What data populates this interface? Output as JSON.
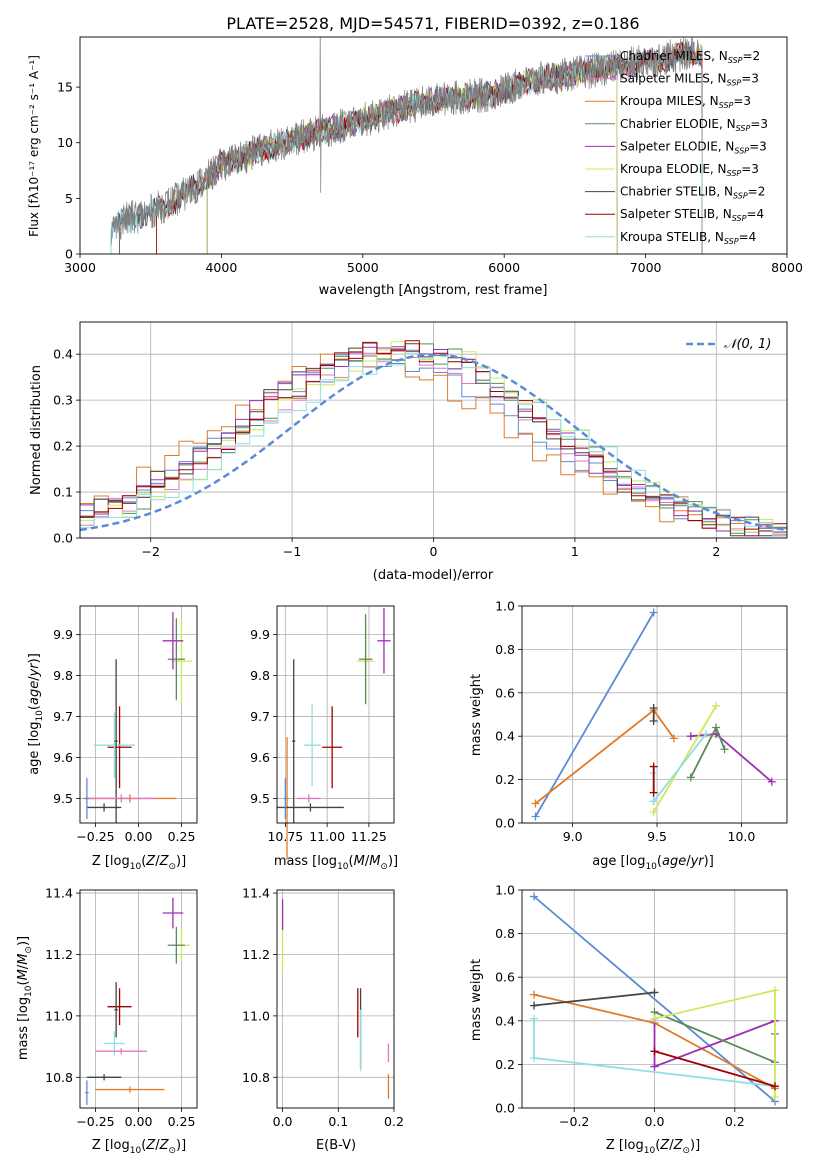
{
  "figure_title": "PLATE=2528, MJD=54571, FIBERID=0392, z=0.186",
  "chart_data": [
    {
      "id": "spectrum",
      "type": "line",
      "title": "PLATE=2528, MJD=54571, FIBERID=0392, z=0.186",
      "xlabel": "wavelength [Angstrom, rest frame]",
      "ylabel": "Flux [fλ10⁻¹⁷ erg cm⁻² s⁻¹ A⁻¹]",
      "xlim": [
        3000,
        8000
      ],
      "ylim": [
        0,
        19.5
      ],
      "xticks": [
        3000,
        4000,
        5000,
        6000,
        7000,
        8000
      ],
      "yticks": [
        0,
        5,
        10,
        15
      ],
      "legend_position": "top-right",
      "legend": [
        {
          "label": "Chabrier MILES, N_SSP=2",
          "color": "#5b8bd6"
        },
        {
          "label": "Salpeter MILES, N_SSP=3",
          "color": "#e377c2"
        },
        {
          "label": "Kroupa MILES, N_SSP=3",
          "color": "#e07b2a"
        },
        {
          "label": "Chabrier ELODIE, N_SSP=3",
          "color": "#5a8a5a"
        },
        {
          "label": "Salpeter ELODIE, N_SSP=3",
          "color": "#9b30b0"
        },
        {
          "label": "Kroupa ELODIE, N_SSP=3",
          "color": "#cfe85a"
        },
        {
          "label": "Chabrier STELIB, N_SSP=2",
          "color": "#444444"
        },
        {
          "label": "Salpeter STELIB, N_SSP=4",
          "color": "#a00000"
        },
        {
          "label": "Kroupa STELIB, N_SSP=4",
          "color": "#8fdfe0"
        }
      ],
      "continuum": [
        [
          3220,
          2.0
        ],
        [
          3300,
          3.0
        ],
        [
          3500,
          3.8
        ],
        [
          3700,
          5.0
        ],
        [
          3900,
          6.8
        ],
        [
          4000,
          8.0
        ],
        [
          4300,
          9.5
        ],
        [
          4600,
          10.6
        ],
        [
          5000,
          12.0
        ],
        [
          5300,
          13.2
        ],
        [
          5600,
          14.0
        ],
        [
          5900,
          14.3
        ],
        [
          6200,
          15.6
        ],
        [
          6600,
          16.4
        ],
        [
          7000,
          17.3
        ],
        [
          7400,
          18.2
        ]
      ],
      "model_start": {
        "Chabrier MILES": 3220,
        "Kroupa STELIB": 3220,
        "Chabrier STELIB": 3280,
        "Salpeter STELIB": 3540,
        "Kroupa MILES": 3540,
        "Kroupa ELODIE": 3900,
        "Chabrier ELODIE": 3900,
        "Salpeter ELODIE": 3900,
        "Salpeter MILES": 3900
      },
      "model_end": {
        "Chabrier ELODIE": 6800,
        "Salpeter ELODIE": 6800,
        "Kroupa ELODIE": 6800,
        "Salpeter STELIB": 7400,
        "Chabrier STELIB": 7400
      }
    },
    {
      "id": "residuals",
      "type": "histogram",
      "xlabel": "(data-model)/error",
      "ylabel": "Normed distribution",
      "xlim": [
        -2.5,
        2.5
      ],
      "ylim": [
        0,
        0.47
      ],
      "xticks": [
        -2,
        -1,
        0,
        1,
        2
      ],
      "yticks": [
        0.0,
        0.1,
        0.2,
        0.3,
        0.4
      ],
      "legend_position": "top-right",
      "gaussian_label": "N(0,1)",
      "gaussian_color": "#5b8bd6",
      "series": [
        {
          "color": "#5b8bd6",
          "center": -0.35,
          "peak": 0.39
        },
        {
          "color": "#e377c2",
          "center": -0.25,
          "peak": 0.4
        },
        {
          "color": "#e07b2a",
          "center": -0.5,
          "peak": 0.39
        },
        {
          "color": "#5a8a5a",
          "center": -0.2,
          "peak": 0.41
        },
        {
          "color": "#9b30b0",
          "center": -0.3,
          "peak": 0.42
        },
        {
          "color": "#cfe85a",
          "center": -0.15,
          "peak": 0.41
        },
        {
          "color": "#444444",
          "center": -0.3,
          "peak": 0.42
        },
        {
          "color": "#a00000",
          "center": -0.25,
          "peak": 0.41
        },
        {
          "color": "#8fdfe0",
          "center": -0.1,
          "peak": 0.4
        }
      ]
    },
    {
      "id": "age-vs-Z",
      "type": "errorbar",
      "xlabel": "Z [log10(Z/Z⊙)]",
      "ylabel": "age [log10(age/yr)]",
      "xlim": [
        -0.34,
        0.34
      ],
      "ylim": [
        9.44,
        9.97
      ],
      "xticks": [
        -0.25,
        0.0,
        0.25
      ],
      "xticklabels": [
        "−0.25",
        "0.00",
        "0.25"
      ],
      "yticks": [
        9.5,
        9.6,
        9.7,
        9.8,
        9.9
      ],
      "points": [
        {
          "x": 0.25,
          "y": 9.835,
          "xerr": 0.06,
          "yerr": 0.1,
          "color": "#cfe85a"
        },
        {
          "x": 0.22,
          "y": 9.84,
          "xerr": 0.05,
          "yerr": 0.1,
          "color": "#5a8a5a"
        },
        {
          "x": 0.2,
          "y": 9.885,
          "xerr": 0.06,
          "yerr": 0.07,
          "color": "#9b30b0"
        },
        {
          "x": -0.11,
          "y": 9.625,
          "xerr": 0.07,
          "yerr": 0.1,
          "color": "#a00000"
        },
        {
          "x": -0.14,
          "y": 9.63,
          "xerr": 0.12,
          "yerr": 0.08,
          "color": "#8fdfe0"
        },
        {
          "x": -0.13,
          "y": 9.64,
          "xerr": 0.01,
          "yerr": 0.2,
          "color": "#444444"
        },
        {
          "x": -0.05,
          "y": 9.5,
          "xerr": 0.27,
          "yerr": 0.01,
          "color": "#e07b2a"
        },
        {
          "x": -0.1,
          "y": 9.5,
          "xerr": 0.2,
          "yerr": 0.01,
          "color": "#e377c2"
        },
        {
          "x": -0.2,
          "y": 9.478,
          "xerr": 0.1,
          "yerr": 0.01,
          "color": "#444444"
        },
        {
          "x": -0.3,
          "y": 9.5,
          "xerr": 0.01,
          "yerr": 0.05,
          "color": "#5b8bd6"
        }
      ]
    },
    {
      "id": "age-vs-mass",
      "type": "errorbar",
      "xlabel": "mass [log10(M/M⊙)]",
      "xlim": [
        10.7,
        11.4
      ],
      "ylim": [
        9.44,
        9.97
      ],
      "xticks": [
        10.75,
        11.0,
        11.25
      ],
      "yticks": [
        9.5,
        9.6,
        9.7,
        9.8,
        9.9
      ],
      "points": [
        {
          "x": 11.23,
          "y": 9.835,
          "xerr": 0.05,
          "yerr": 0.1,
          "color": "#cfe85a"
        },
        {
          "x": 11.23,
          "y": 9.84,
          "xerr": 0.04,
          "yerr": 0.11,
          "color": "#5a8a5a"
        },
        {
          "x": 11.34,
          "y": 9.885,
          "xerr": 0.04,
          "yerr": 0.08,
          "color": "#9b30b0"
        },
        {
          "x": 11.03,
          "y": 9.625,
          "xerr": 0.06,
          "yerr": 0.1,
          "color": "#a00000"
        },
        {
          "x": 10.91,
          "y": 9.63,
          "xerr": 0.05,
          "yerr": 0.1,
          "color": "#8fdfe0"
        },
        {
          "x": 10.8,
          "y": 9.64,
          "xerr": 0.01,
          "yerr": 0.2,
          "color": "#444444"
        },
        {
          "x": 10.76,
          "y": 9.5,
          "xerr": 0.01,
          "yerr": 0.15,
          "color": "#e07b2a"
        },
        {
          "x": 10.89,
          "y": 9.5,
          "xerr": 0.07,
          "yerr": 0.01,
          "color": "#e377c2"
        },
        {
          "x": 10.9,
          "y": 9.478,
          "xerr": 0.2,
          "yerr": 0.01,
          "color": "#444444"
        },
        {
          "x": 10.75,
          "y": 9.5,
          "xerr": 0.01,
          "yerr": 0.05,
          "color": "#5b8bd6"
        }
      ]
    },
    {
      "id": "weight-vs-age",
      "type": "line",
      "xlabel": "age [log10(age/yr)]",
      "ylabel": "mass weight",
      "xlim": [
        8.7,
        10.27
      ],
      "ylim": [
        0.0,
        1.0
      ],
      "xticks": [
        9.0,
        9.5,
        10.0
      ],
      "yticks": [
        0.0,
        0.2,
        0.4,
        0.6,
        0.8,
        1.0
      ],
      "series": [
        {
          "color": "#5b8bd6",
          "x": [
            8.78,
            9.48
          ],
          "y": [
            0.03,
            0.97
          ]
        },
        {
          "color": "#e07b2a",
          "x": [
            8.78,
            9.48,
            9.6
          ],
          "y": [
            0.09,
            0.52,
            0.39
          ]
        },
        {
          "color": "#444444",
          "x": [
            9.48,
            9.48
          ],
          "y": [
            0.47,
            0.53
          ]
        },
        {
          "color": "#9b30b0",
          "x": [
            9.7,
            9.85,
            10.18
          ],
          "y": [
            0.4,
            0.41,
            0.19
          ]
        },
        {
          "color": "#5a8a5a",
          "x": [
            9.7,
            9.85,
            9.9
          ],
          "y": [
            0.21,
            0.44,
            0.34
          ]
        },
        {
          "color": "#cfe85a",
          "x": [
            9.48,
            9.85
          ],
          "y": [
            0.05,
            0.54
          ]
        },
        {
          "color": "#8fdfe0",
          "x": [
            9.48,
            9.48,
            9.79
          ],
          "y": [
            0.23,
            0.1,
            0.41
          ]
        },
        {
          "color": "#a00000",
          "x": [
            9.48,
            9.48
          ],
          "y": [
            0.26,
            0.14
          ]
        }
      ]
    },
    {
      "id": "mass-vs-Z",
      "type": "errorbar",
      "xlabel": "Z [log10(Z/Z⊙)]",
      "ylabel": "mass [log10(M/M⊙)]",
      "xlim": [
        -0.34,
        0.34
      ],
      "ylim": [
        10.7,
        11.41
      ],
      "xticks": [
        -0.25,
        0.0,
        0.25
      ],
      "xticklabels": [
        "−0.25",
        "0.00",
        "0.25"
      ],
      "yticks": [
        10.8,
        11.0,
        11.2,
        11.4
      ],
      "points": [
        {
          "x": 0.25,
          "y": 11.23,
          "xerr": 0.05,
          "yerr": 0.05,
          "color": "#cfe85a"
        },
        {
          "x": 0.22,
          "y": 11.23,
          "xerr": 0.05,
          "yerr": 0.06,
          "color": "#5a8a5a"
        },
        {
          "x": 0.2,
          "y": 11.335,
          "xerr": 0.06,
          "yerr": 0.05,
          "color": "#9b30b0"
        },
        {
          "x": -0.11,
          "y": 11.03,
          "xerr": 0.07,
          "yerr": 0.06,
          "color": "#a00000"
        },
        {
          "x": -0.14,
          "y": 10.91,
          "xerr": 0.06,
          "yerr": 0.04,
          "color": "#8fdfe0"
        },
        {
          "x": -0.13,
          "y": 11.02,
          "xerr": 0.01,
          "yerr": 0.09,
          "color": "#444444"
        },
        {
          "x": -0.05,
          "y": 10.76,
          "xerr": 0.2,
          "yerr": 0.01,
          "color": "#e07b2a"
        },
        {
          "x": -0.1,
          "y": 10.885,
          "xerr": 0.15,
          "yerr": 0.01,
          "color": "#e377c2"
        },
        {
          "x": -0.2,
          "y": 10.8,
          "xerr": 0.1,
          "yerr": 0.01,
          "color": "#444444"
        },
        {
          "x": -0.3,
          "y": 10.75,
          "xerr": 0.01,
          "yerr": 0.04,
          "color": "#5b8bd6"
        }
      ]
    },
    {
      "id": "mass-vs-ebv",
      "type": "errorbar",
      "xlabel": "E(B-V)",
      "xlim": [
        -0.01,
        0.2
      ],
      "ylim": [
        10.7,
        11.41
      ],
      "xticks": [
        0.0,
        0.1,
        0.2
      ],
      "yticks": [
        10.8,
        11.0,
        11.2,
        11.4
      ],
      "points": [
        {
          "x": 0.0,
          "y": 11.25,
          "xerr": 0.001,
          "yerr": 0.1,
          "color": "#cfe85a"
        },
        {
          "x": 0.0,
          "y": 11.33,
          "xerr": 0.001,
          "yerr": 0.05,
          "color": "#9b30b0"
        },
        {
          "x": 0.135,
          "y": 11.01,
          "xerr": 0.001,
          "yerr": 0.08,
          "color": "#a00000"
        },
        {
          "x": 0.14,
          "y": 10.96,
          "xerr": 0.001,
          "yerr": 0.13,
          "color": "#444444"
        },
        {
          "x": 0.14,
          "y": 10.92,
          "xerr": 0.001,
          "yerr": 0.1,
          "color": "#8fdfe0"
        },
        {
          "x": 0.19,
          "y": 10.77,
          "xerr": 0.001,
          "yerr": 0.04,
          "color": "#e07b2a"
        },
        {
          "x": 0.19,
          "y": 10.88,
          "xerr": 0.001,
          "yerr": 0.03,
          "color": "#e377c2"
        }
      ]
    },
    {
      "id": "weight-vs-Z",
      "type": "line",
      "xlabel": "Z [log10(Z/Z⊙)]",
      "ylabel": "mass weight",
      "xlim": [
        -0.33,
        0.33
      ],
      "ylim": [
        0.0,
        1.0
      ],
      "xticks": [
        -0.2,
        0.0,
        0.2
      ],
      "xticklabels": [
        "−0.2",
        "0.0",
        "0.2"
      ],
      "yticks": [
        0.0,
        0.2,
        0.4,
        0.6,
        0.8,
        1.0
      ],
      "series": [
        {
          "color": "#5b8bd6",
          "x": [
            -0.3,
            0.3
          ],
          "y": [
            0.97,
            0.03
          ]
        },
        {
          "color": "#e07b2a",
          "x": [
            -0.3,
            0.0,
            0.3
          ],
          "y": [
            0.52,
            0.39,
            0.09
          ]
        },
        {
          "color": "#444444",
          "x": [
            -0.3,
            0.0
          ],
          "y": [
            0.47,
            0.53
          ]
        },
        {
          "color": "#9b30b0",
          "x": [
            0.0,
            0.0,
            0.3
          ],
          "y": [
            0.41,
            0.19,
            0.4
          ]
        },
        {
          "color": "#5a8a5a",
          "x": [
            0.0,
            0.3,
            0.3
          ],
          "y": [
            0.44,
            0.21,
            0.34
          ]
        },
        {
          "color": "#cfe85a",
          "x": [
            0.0,
            0.3,
            0.3
          ],
          "y": [
            0.41,
            0.54,
            0.05
          ]
        },
        {
          "color": "#8fdfe0",
          "x": [
            -0.3,
            -0.3,
            0.3
          ],
          "y": [
            0.41,
            0.23,
            0.1
          ]
        },
        {
          "color": "#a00000",
          "x": [
            0.0,
            0.3
          ],
          "y": [
            0.26,
            0.1
          ]
        }
      ]
    }
  ]
}
